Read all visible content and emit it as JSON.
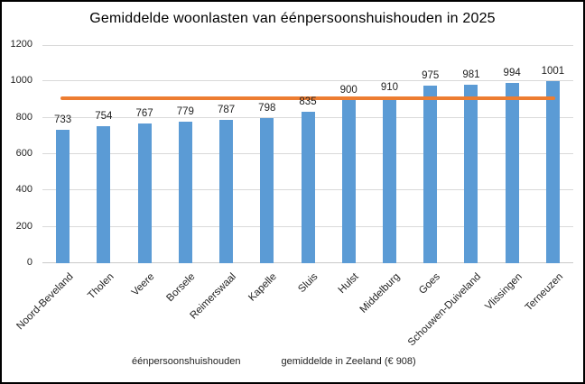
{
  "window": {
    "background": "#FFFFFF",
    "border_color": "#000000",
    "text_color": "#1F1F1F"
  },
  "chart_data": {
    "type": "bar",
    "title": "Gemiddelde woonlasten van éénpersoonshuishouden in 2025",
    "categories": [
      "Noord-Beveland",
      "Tholen",
      "Veere",
      "Borsele",
      "Reimerswaal",
      "Kapelle",
      "Sluis",
      "Hulst",
      "Middelburg",
      "Goes",
      "Schouwen-Duiveland",
      "Vlissingen",
      "Terneuzen"
    ],
    "series": [
      {
        "name": "éénpersoonshuishouden",
        "type": "bar",
        "color": "#5B9BD5",
        "values": [
          733,
          754,
          767,
          779,
          787,
          798,
          835,
          900,
          910,
          975,
          981,
          994,
          1001
        ]
      },
      {
        "name": "gemiddelde in Zeeland (€ 908)",
        "type": "line",
        "color": "#ED7D31",
        "value": 908
      }
    ],
    "data_labels": true,
    "xlabel": "",
    "ylabel": "",
    "ylim": [
      0,
      1200
    ],
    "yticks": [
      0,
      200,
      400,
      600,
      800,
      1000,
      1200
    ],
    "grid": true,
    "gridline_color": "#D9D9D9",
    "axis_line_color": "#C9C9C9",
    "legend_position": "bottom"
  }
}
